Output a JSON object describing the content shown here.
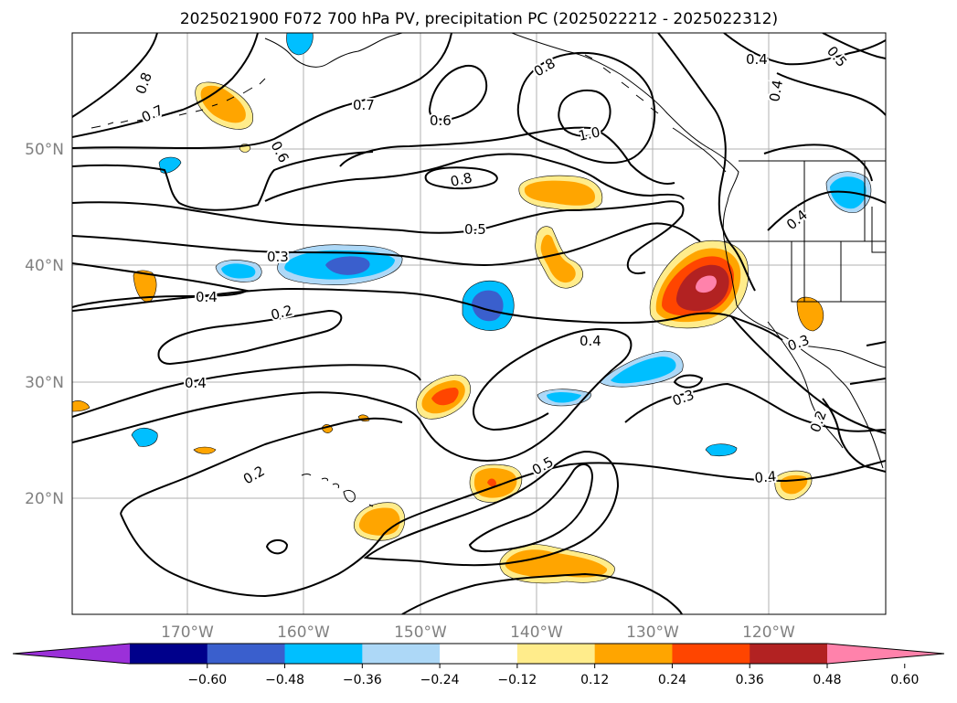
{
  "title": "2025021900 F072 700 hPa PV, precipitation PC (2025022212 - 2025022312)",
  "map": {
    "lon_labels": [
      "170°W",
      "160°W",
      "150°W",
      "140°W",
      "130°W",
      "120°W"
    ],
    "lat_labels": [
      "50°N",
      "40°N",
      "30°N",
      "20°N"
    ],
    "grid_color": "#b0b0b0",
    "label_color": "#808080",
    "contour_labels": [
      {
        "id": "c-0.8-a",
        "text": "0.8"
      },
      {
        "id": "c-0.7-a",
        "text": "0.7"
      },
      {
        "id": "c-0.7-b",
        "text": "0.7"
      },
      {
        "id": "c-0.6-a",
        "text": "0.6"
      },
      {
        "id": "c-0.6-b",
        "text": "0.6"
      },
      {
        "id": "c-0.8-b",
        "text": "0.8"
      },
      {
        "id": "c-1.0",
        "text": "1.0"
      },
      {
        "id": "c-0.8-c",
        "text": "0.8"
      },
      {
        "id": "c-0.5-a",
        "text": "0.5"
      },
      {
        "id": "c-0.4-a",
        "text": "0.4"
      },
      {
        "id": "c-0.4-b",
        "text": "0.4"
      },
      {
        "id": "c-0.5-b",
        "text": "0.5"
      },
      {
        "id": "c-0.4-c",
        "text": "0.4"
      },
      {
        "id": "c-0.3-a",
        "text": "0.3"
      },
      {
        "id": "c-0.4-d",
        "text": "0.4"
      },
      {
        "id": "c-0.2-a",
        "text": "0.2"
      },
      {
        "id": "c-0.4-e",
        "text": "0.4"
      },
      {
        "id": "c-0.3-b",
        "text": "0.3"
      },
      {
        "id": "c-0.4-f",
        "text": "0.4"
      },
      {
        "id": "c-0.3-c",
        "text": "0.3"
      },
      {
        "id": "c-0.2-b",
        "text": "0.2"
      },
      {
        "id": "c-0.2-c",
        "text": "0.2"
      },
      {
        "id": "c-0.4-g",
        "text": "0.4"
      },
      {
        "id": "c-0.5-c",
        "text": "0.5"
      }
    ]
  },
  "colorbar": {
    "colors": [
      "#9b30d9",
      "#00008b",
      "#3a5fcd",
      "#00bfff",
      "#add8f7",
      "#ffffff",
      "#ffec8b",
      "#ffa500",
      "#ff4500",
      "#b22222",
      "#ff82ab"
    ],
    "tick_labels": [
      "−0.60",
      "−0.48",
      "−0.36",
      "−0.24",
      "−0.12",
      "0.12",
      "0.24",
      "0.36",
      "0.48",
      "0.60"
    ]
  }
}
